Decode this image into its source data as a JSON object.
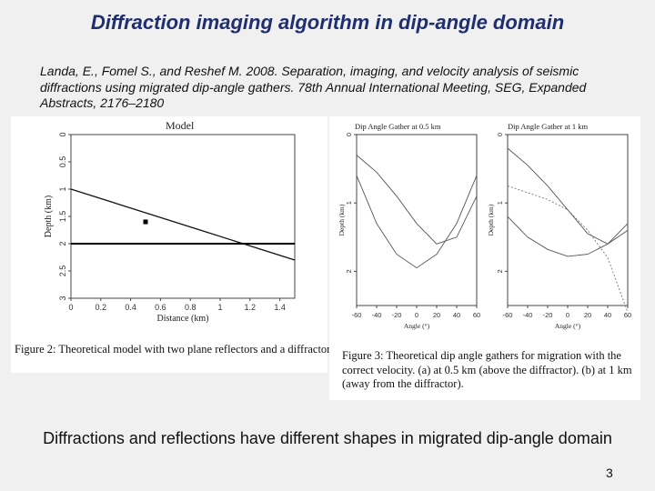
{
  "slide": {
    "title": "Diffraction imaging algorithm in dip-angle domain",
    "reference": "Landa, E., Fomel S., and Reshef  M. 2008. Separation, imaging, and velocity analysis of seismic diffractions using migrated dip-angle gathers. 78th Annual International Meeting, SEG, Expanded Abstracts, 2176–2180",
    "summary": "Diffractions and reflections have different shapes in migrated dip-angle domain",
    "page_number": "3"
  },
  "figure2": {
    "panel_title": "Model",
    "xlabel": "Distance (km)",
    "ylabel": "Depth (km)",
    "x_ticks": [
      "0",
      "0.2",
      "0.4",
      "0.6",
      "0.8",
      "1",
      "1.2",
      "1.4"
    ],
    "y_ticks": [
      "0",
      "0.5",
      "1",
      "1.5",
      "2",
      "2.5",
      "3"
    ],
    "caption": "Figure 2:  Theoretical model with two plane reflectors and a diffractor."
  },
  "figure3": {
    "panel_a_title": "Dip Angle Gather at 0.5 km",
    "panel_b_title": "Dip Angle Gather at 1 km",
    "xlabel": "Angle (°)",
    "ylabel": "Depth (km)",
    "x_ticks": [
      "-60",
      "-40",
      "-20",
      "0",
      "20",
      "40",
      "60"
    ],
    "y_ticks": [
      "0",
      "1",
      "2"
    ],
    "caption": "Figure 3:  Theoretical dip angle gathers for migration with the correct velocity.  (a) at 0.5 km (above the diffractor).  (b) at 1 km (away from the diffractor)."
  },
  "chart_data": [
    {
      "type": "line",
      "title": "Model",
      "xlabel": "Distance (km)",
      "ylabel": "Depth (km)",
      "xlim": [
        0,
        1.5
      ],
      "ylim": [
        3,
        0
      ],
      "series": [
        {
          "x": [
            0,
            1.5
          ],
          "y": [
            1.0,
            2.3
          ]
        },
        {
          "x": [
            0,
            1.5
          ],
          "y": [
            2.0,
            2.0
          ]
        }
      ],
      "points": [
        {
          "x": 0.5,
          "y": 1.6
        }
      ]
    },
    {
      "type": "line",
      "title": "Dip Angle Gather at 0.5 km",
      "xlabel": "Angle (°)",
      "ylabel": "Depth (km)",
      "xlim": [
        -60,
        60
      ],
      "ylim": [
        2.5,
        0
      ],
      "series": [
        {
          "x": [
            -60,
            -40,
            -20,
            0,
            20,
            40,
            60
          ],
          "y": [
            0.3,
            0.55,
            0.9,
            1.3,
            1.6,
            1.5,
            0.9
          ]
        },
        {
          "x": [
            -60,
            -40,
            -20,
            0,
            20,
            40,
            60
          ],
          "y": [
            0.6,
            1.3,
            1.75,
            1.95,
            1.75,
            1.3,
            0.6
          ]
        }
      ]
    },
    {
      "type": "line",
      "title": "Dip Angle Gather at 1 km",
      "xlabel": "Angle (°)",
      "ylabel": "Depth (km)",
      "xlim": [
        -60,
        60
      ],
      "ylim": [
        2.5,
        0
      ],
      "series": [
        {
          "x": [
            -60,
            -40,
            -20,
            0,
            20,
            40,
            60
          ],
          "y": [
            0.2,
            0.45,
            0.75,
            1.1,
            1.45,
            1.6,
            1.3
          ]
        },
        {
          "x": [
            -60,
            -40,
            -20,
            0,
            20,
            40,
            60
          ],
          "y": [
            1.2,
            1.5,
            1.68,
            1.78,
            1.75,
            1.6,
            1.4
          ]
        },
        {
          "x": [
            -60,
            -40,
            -20,
            0,
            20,
            40,
            60
          ],
          "y": [
            0.75,
            0.85,
            0.95,
            1.1,
            1.4,
            1.8,
            2.6
          ]
        }
      ]
    }
  ]
}
